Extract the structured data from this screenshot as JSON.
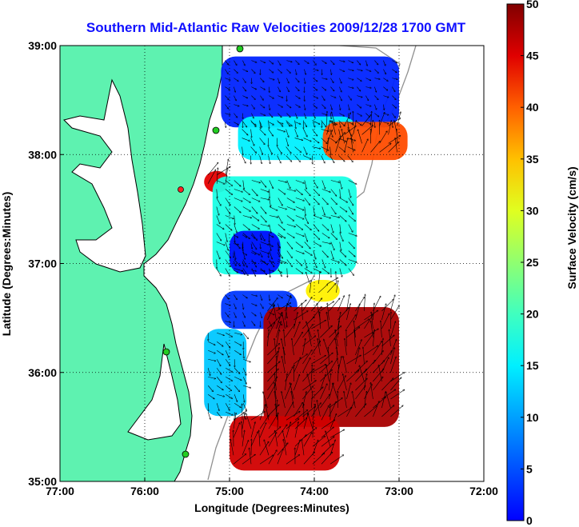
{
  "chart_data": {
    "type": "heatmap",
    "title": "Southern Mid-Atlantic Raw Velocities 2009/12/28 1700 GMT",
    "xlabel": "Longitude (Degrees:Minutes)",
    "ylabel": "Latitude (Degrees:Minutes)",
    "colorbar_label": "Surface Velocity (cm/s)",
    "x_ticks": [
      "77:00",
      "76:00",
      "75:00",
      "74:00",
      "73:00",
      "72:00"
    ],
    "y_ticks": [
      "39:00",
      "38:00",
      "37:00",
      "36:00",
      "35:00"
    ],
    "x_range": [
      -77,
      -72
    ],
    "y_range": [
      35,
      39
    ],
    "colorbar_ticks": [
      0,
      5,
      10,
      15,
      20,
      25,
      30,
      35,
      40,
      45,
      50
    ],
    "colorbar_range": [
      0,
      50
    ],
    "colormap": "jet",
    "grid": true,
    "title_color": "#1010ff",
    "land_color": "#5ef2b0",
    "coast_color": "#000000",
    "bathymetry_color": "#909090",
    "station_color": "#22cc22",
    "station_active_color": "#ff2222",
    "field_regions": [
      {
        "lon": [
          -75.1,
          -73.0
        ],
        "lat": [
          38.25,
          38.9
        ],
        "speed": 8
      },
      {
        "lon": [
          -74.9,
          -73.5
        ],
        "lat": [
          37.95,
          38.35
        ],
        "speed": 18
      },
      {
        "lon": [
          -73.9,
          -72.9
        ],
        "lat": [
          37.95,
          38.3
        ],
        "speed": 40
      },
      {
        "lon": [
          -75.3,
          -75.0
        ],
        "lat": [
          37.65,
          37.85
        ],
        "speed": 45
      },
      {
        "lon": [
          -75.2,
          -73.5
        ],
        "lat": [
          36.9,
          37.8
        ],
        "speed": 20
      },
      {
        "lon": [
          -75.0,
          -74.4
        ],
        "lat": [
          36.9,
          37.3
        ],
        "speed": 7
      },
      {
        "lon": [
          -75.1,
          -74.2
        ],
        "lat": [
          36.4,
          36.75
        ],
        "speed": 9
      },
      {
        "lon": [
          -74.1,
          -73.7
        ],
        "lat": [
          36.65,
          36.85
        ],
        "speed": 32
      },
      {
        "lon": [
          -74.6,
          -73.0
        ],
        "lat": [
          35.5,
          36.6
        ],
        "speed": 48
      },
      {
        "lon": [
          -75.3,
          -74.8
        ],
        "lat": [
          35.6,
          36.4
        ],
        "speed": 16
      },
      {
        "lon": [
          -75.0,
          -73.7
        ],
        "lat": [
          35.1,
          35.6
        ],
        "speed": 46
      }
    ]
  }
}
